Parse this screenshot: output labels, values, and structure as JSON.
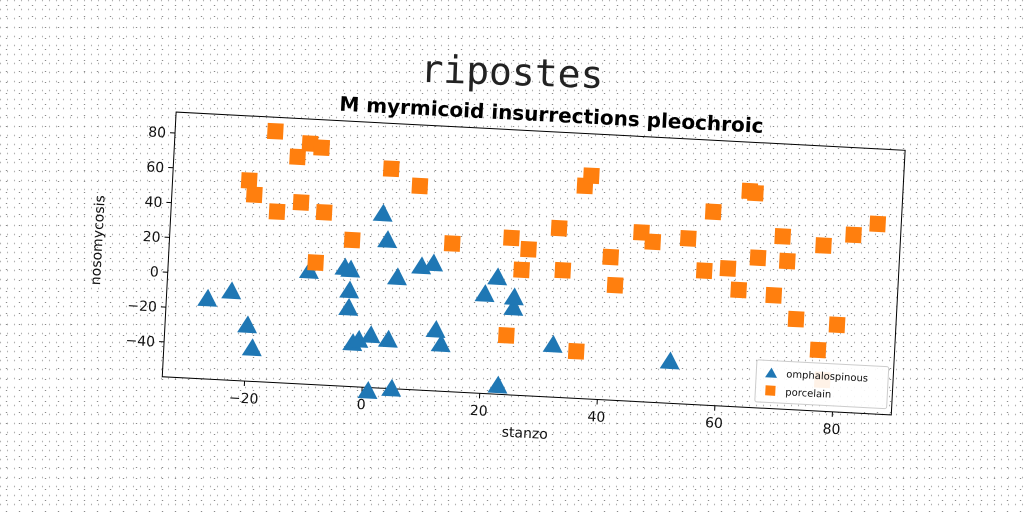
{
  "suptitle": "ripostes",
  "chart_data": {
    "type": "scatter",
    "title": "M myrmicoid insurrections pleochroic",
    "xlabel": "stanzo",
    "ylabel": "nosomycosis",
    "xlim": [
      -34,
      90
    ],
    "ylim": [
      -60,
      92
    ],
    "xticks": [
      -20,
      0,
      20,
      40,
      60,
      80
    ],
    "yticks": [
      -40,
      -20,
      0,
      20,
      40,
      60,
      80
    ],
    "grid": false,
    "legend_position": "bottom-right",
    "series": [
      {
        "name": "omphalospinous",
        "color": "#1f77b4",
        "marker": "triangle",
        "points": [
          [
            -27,
            -14
          ],
          [
            -23,
            -9
          ],
          [
            -20,
            -28
          ],
          [
            -19,
            -41
          ],
          [
            -10,
            5
          ],
          [
            -4,
            8
          ],
          [
            -3,
            7
          ],
          [
            -3,
            -5
          ],
          [
            -3,
            -15
          ],
          [
            -2,
            -35
          ],
          [
            -1,
            -33
          ],
          [
            1,
            -30
          ],
          [
            1,
            -62
          ],
          [
            2,
            40
          ],
          [
            3,
            25
          ],
          [
            4,
            -32
          ],
          [
            5,
            4
          ],
          [
            5,
            -60
          ],
          [
            9,
            11
          ],
          [
            11,
            13
          ],
          [
            12,
            -25
          ],
          [
            13,
            -33
          ],
          [
            20,
            -3
          ],
          [
            22,
            7
          ],
          [
            23,
            -55
          ],
          [
            25,
            -10
          ],
          [
            25,
            -4
          ],
          [
            32,
            -30
          ],
          [
            52,
            -36
          ]
        ]
      },
      {
        "name": "porcelain",
        "color": "#ff7f0e",
        "marker": "square",
        "points": [
          [
            -17,
            84
          ],
          [
            -13,
            70
          ],
          [
            -11,
            78
          ],
          [
            -9,
            76
          ],
          [
            -21,
            55
          ],
          [
            -20,
            47
          ],
          [
            -16,
            38
          ],
          [
            -12,
            44
          ],
          [
            -8,
            39
          ],
          [
            -9,
            10
          ],
          [
            -3,
            24
          ],
          [
            3,
            66
          ],
          [
            8,
            57
          ],
          [
            14,
            25
          ],
          [
            24,
            30
          ],
          [
            24,
            -26
          ],
          [
            26,
            12
          ],
          [
            27,
            24
          ],
          [
            32,
            37
          ],
          [
            33,
            13
          ],
          [
            36,
            62
          ],
          [
            37,
            68
          ],
          [
            36,
            -33
          ],
          [
            41,
            22
          ],
          [
            42,
            6
          ],
          [
            46,
            37
          ],
          [
            48,
            32
          ],
          [
            54,
            35
          ],
          [
            57,
            17
          ],
          [
            58,
            51
          ],
          [
            61,
            19
          ],
          [
            63,
            7
          ],
          [
            64,
            64
          ],
          [
            65,
            63
          ],
          [
            66,
            26
          ],
          [
            69,
            5
          ],
          [
            70,
            39
          ],
          [
            71,
            25
          ],
          [
            73,
            -8
          ],
          [
            77,
            35
          ],
          [
            77,
            -25
          ],
          [
            78,
            -42
          ],
          [
            80,
            -10
          ],
          [
            82,
            42
          ],
          [
            86,
            49
          ]
        ]
      }
    ]
  }
}
